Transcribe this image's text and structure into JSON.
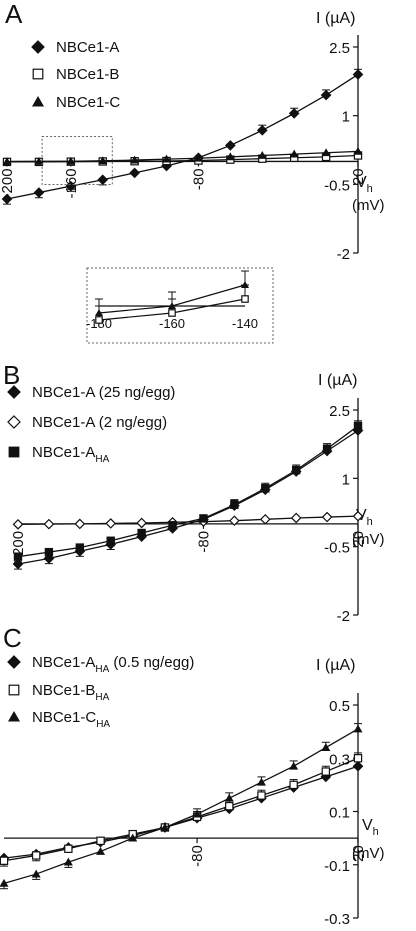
{
  "chart_data": [
    {
      "type": "line",
      "panel_label": "A",
      "ylabel": "I (µA)",
      "xlabel_main": "V",
      "xlabel_sub": "h",
      "xlabel_unit": "(mV)",
      "xlim": [
        -200,
        20
      ],
      "ylim": [
        -2,
        2.5
      ],
      "x_ticks": [
        -200,
        -160,
        -80,
        20
      ],
      "y_ticks": [
        2.5,
        1,
        -0.5,
        -2
      ],
      "x_tick_labels": [
        "-200",
        "-160",
        "-80",
        "20"
      ],
      "y_tick_labels": [
        "2.5",
        "1",
        "-0.5",
        "-2"
      ],
      "x": [
        -200,
        -180,
        -160,
        -140,
        -120,
        -100,
        -80,
        -60,
        -40,
        -20,
        0,
        20
      ],
      "series": [
        {
          "name": "NBCe1-A",
          "marker": "diamond",
          "values": [
            -0.82,
            -0.68,
            -0.54,
            -0.4,
            -0.25,
            -0.1,
            0.08,
            0.35,
            0.68,
            1.05,
            1.45,
            1.9
          ]
        },
        {
          "name": "NBCe1-B",
          "marker": "square-open",
          "values": [
            -0.01,
            -0.01,
            -0.005,
            0.0,
            0.005,
            0.01,
            0.02,
            0.04,
            0.06,
            0.08,
            0.1,
            0.13
          ]
        },
        {
          "name": "NBCe1-C",
          "marker": "triangle",
          "values": [
            -0.005,
            0.0,
            0.005,
            0.015,
            0.03,
            0.05,
            0.07,
            0.1,
            0.13,
            0.16,
            0.19,
            0.22
          ]
        }
      ],
      "legend_position": "top-left",
      "inset": {
        "xlim": [
          -180,
          -140
        ],
        "x_tick_labels": [
          "-180",
          "-160",
          "-140"
        ],
        "series_b": [
          -0.01,
          -0.005,
          0.005
        ],
        "series_c": [
          -0.005,
          0.0,
          0.015
        ]
      }
    },
    {
      "type": "line",
      "panel_label": "B",
      "ylabel": "I (µA)",
      "xlabel_main": "V",
      "xlabel_sub": "h",
      "xlabel_unit": "(mV)",
      "xlim": [
        -200,
        20
      ],
      "ylim": [
        -2,
        2.5
      ],
      "x_ticks": [
        -200,
        -80,
        20
      ],
      "y_ticks": [
        2.5,
        1,
        -0.5,
        -2
      ],
      "x_tick_labels": [
        "-200",
        "-80",
        "20"
      ],
      "y_tick_labels": [
        "2.5",
        "1",
        "-0.5",
        "-2"
      ],
      "x": [
        -200,
        -180,
        -160,
        -140,
        -120,
        -100,
        -80,
        -60,
        -40,
        -20,
        0,
        20
      ],
      "series": [
        {
          "name": "NBCe1-A (25 ng/egg)",
          "marker": "diamond",
          "values": [
            -0.88,
            -0.76,
            -0.6,
            -0.45,
            -0.28,
            -0.1,
            0.1,
            0.4,
            0.75,
            1.15,
            1.6,
            2.05
          ]
        },
        {
          "name": "NBCe1-A (2 ng/egg)",
          "marker": "diamond-open",
          "values": [
            -0.01,
            -0.005,
            0.0,
            0.01,
            0.02,
            0.035,
            0.05,
            0.07,
            0.1,
            0.13,
            0.15,
            0.17
          ]
        },
        {
          "name": "NBCe1-A",
          "name_sub": "HA",
          "marker": "square",
          "values": [
            -0.72,
            -0.62,
            -0.52,
            -0.37,
            -0.2,
            -0.03,
            0.12,
            0.42,
            0.78,
            1.18,
            1.65,
            2.15
          ]
        }
      ],
      "legend_position": "top-left"
    },
    {
      "type": "line",
      "panel_label": "C",
      "ylabel": "I (µA)",
      "xlabel_main": "V",
      "xlabel_sub": "h",
      "xlabel_unit": "(mV)",
      "xlim": [
        -200,
        20
      ],
      "ylim": [
        -0.3,
        0.5
      ],
      "x_ticks": [
        -80,
        20
      ],
      "y_ticks": [
        0.5,
        0.3,
        0.1,
        -0.1,
        -0.3
      ],
      "x_tick_labels": [
        "-80",
        "20"
      ],
      "y_tick_labels": [
        "0.5",
        "0.3",
        "0.1",
        "-0.1",
        "-0.3"
      ],
      "x": [
        -200,
        -180,
        -160,
        -140,
        -120,
        -100,
        -80,
        -60,
        -40,
        -20,
        0,
        20
      ],
      "series": [
        {
          "name": "NBCe1-A",
          "name_sub": "HA",
          "name_suffix": " (0.5 ng/egg)",
          "marker": "diamond",
          "values": [
            -0.075,
            -0.06,
            -0.035,
            -0.015,
            0.01,
            0.04,
            0.075,
            0.11,
            0.15,
            0.19,
            0.23,
            0.27
          ]
        },
        {
          "name": "NBCe1-B",
          "name_sub": "HA",
          "marker": "square-open",
          "values": [
            -0.085,
            -0.065,
            -0.04,
            -0.01,
            0.015,
            0.04,
            0.08,
            0.12,
            0.16,
            0.2,
            0.25,
            0.3
          ]
        },
        {
          "name": "NBCe1-C",
          "name_sub": "HA",
          "marker": "triangle",
          "values": [
            -0.17,
            -0.135,
            -0.09,
            -0.05,
            0.0,
            0.04,
            0.09,
            0.15,
            0.21,
            0.27,
            0.34,
            0.41
          ]
        }
      ],
      "legend_position": "top-left"
    }
  ]
}
